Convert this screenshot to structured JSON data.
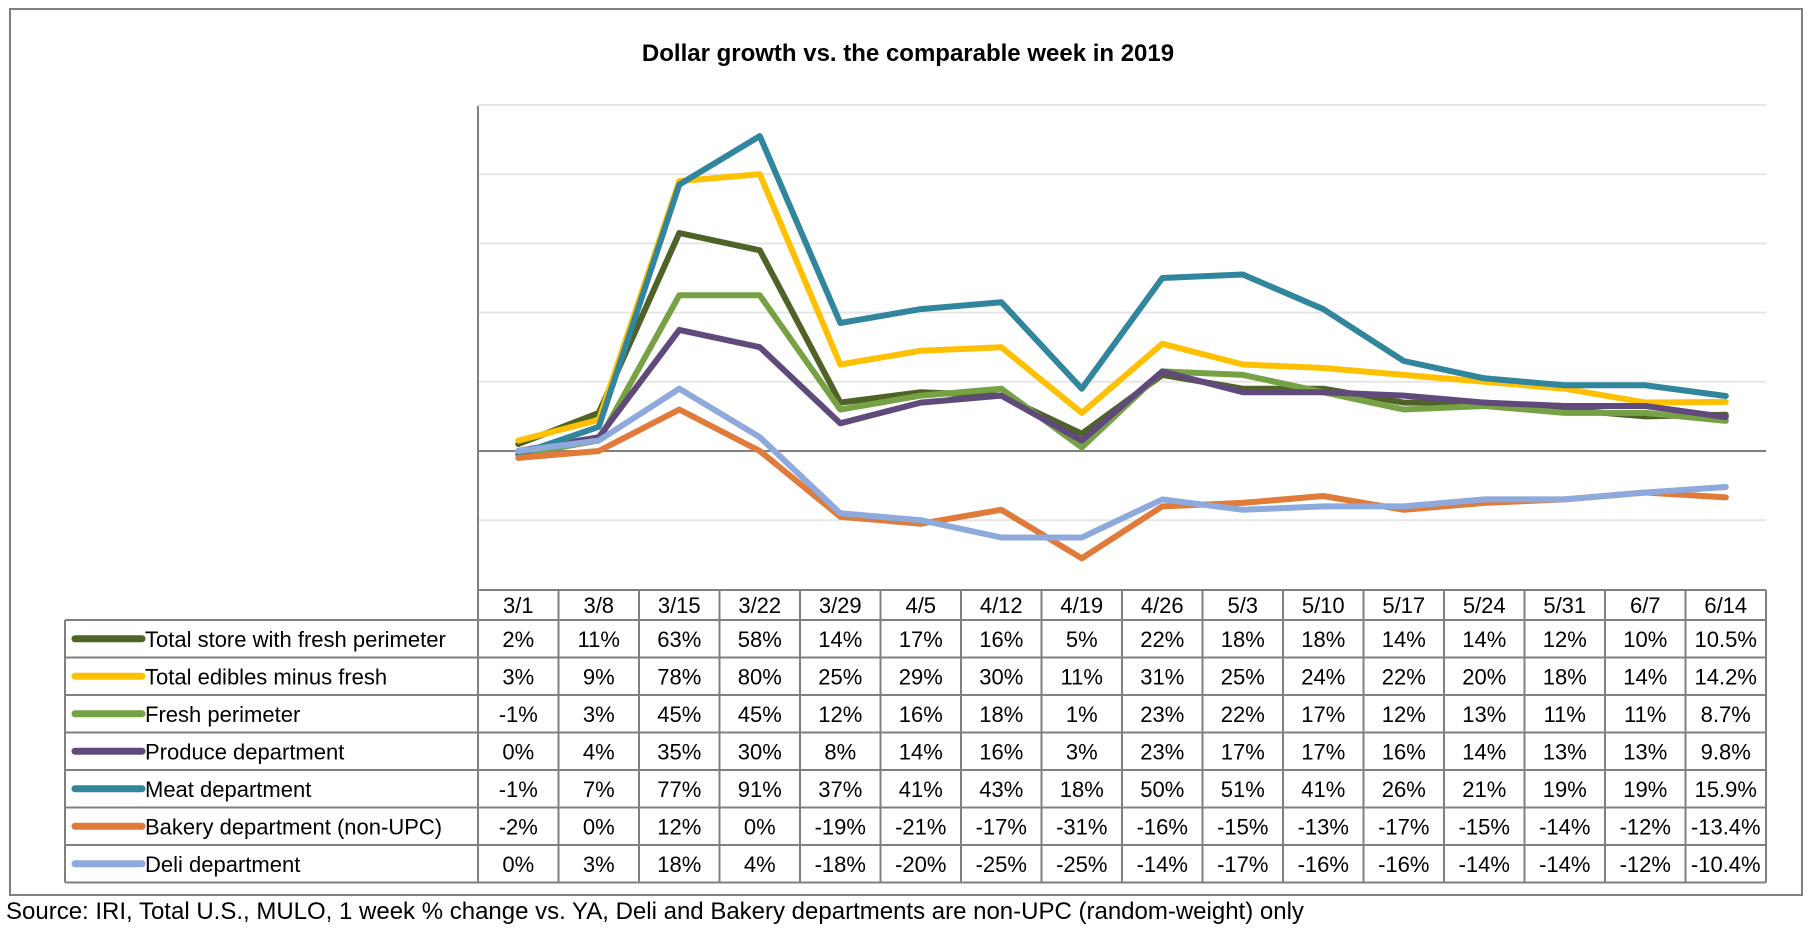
{
  "chart_data": {
    "type": "line",
    "title": "Dollar growth vs. the comparable week in 2019",
    "categories": [
      "3/1",
      "3/8",
      "3/15",
      "3/22",
      "3/29",
      "4/5",
      "4/12",
      "4/19",
      "4/26",
      "5/3",
      "5/10",
      "5/17",
      "5/24",
      "5/31",
      "6/7",
      "6/14"
    ],
    "ylim": [
      -40,
      100
    ],
    "grid": true,
    "legend": "data-table",
    "series": [
      {
        "name": "Total store with fresh perimeter",
        "color": "#4F6228",
        "values": [
          2,
          11,
          63,
          58,
          14,
          17,
          16,
          5,
          22,
          18,
          18,
          14,
          14,
          12,
          10,
          10.5
        ],
        "labels": [
          "2%",
          "11%",
          "63%",
          "58%",
          "14%",
          "17%",
          "16%",
          "5%",
          "22%",
          "18%",
          "18%",
          "14%",
          "14%",
          "12%",
          "10%",
          "10.5%"
        ]
      },
      {
        "name": "Total edibles minus fresh",
        "color": "#FFC000",
        "values": [
          3,
          9,
          78,
          80,
          25,
          29,
          30,
          11,
          31,
          25,
          24,
          22,
          20,
          18,
          14,
          14.2
        ],
        "labels": [
          "3%",
          "9%",
          "78%",
          "80%",
          "25%",
          "29%",
          "30%",
          "11%",
          "31%",
          "25%",
          "24%",
          "22%",
          "20%",
          "18%",
          "14%",
          "14.2%"
        ]
      },
      {
        "name": "Fresh perimeter",
        "color": "#77A145",
        "values": [
          -1,
          3,
          45,
          45,
          12,
          16,
          18,
          1,
          23,
          22,
          17,
          12,
          13,
          11,
          11,
          8.7
        ],
        "labels": [
          "-1%",
          "3%",
          "45%",
          "45%",
          "12%",
          "16%",
          "18%",
          "1%",
          "23%",
          "22%",
          "17%",
          "12%",
          "13%",
          "11%",
          "11%",
          "8.7%"
        ]
      },
      {
        "name": "Produce department",
        "color": "#604A7B",
        "values": [
          0,
          4,
          35,
          30,
          8,
          14,
          16,
          3,
          23,
          17,
          17,
          16,
          14,
          13,
          13,
          9.8
        ],
        "labels": [
          "0%",
          "4%",
          "35%",
          "30%",
          "8%",
          "14%",
          "16%",
          "3%",
          "23%",
          "17%",
          "17%",
          "16%",
          "14%",
          "13%",
          "13%",
          "9.8%"
        ]
      },
      {
        "name": "Meat department",
        "color": "#31859C",
        "values": [
          -1,
          7,
          77,
          91,
          37,
          41,
          43,
          18,
          50,
          51,
          41,
          26,
          21,
          19,
          19,
          15.9
        ],
        "labels": [
          "-1%",
          "7%",
          "77%",
          "91%",
          "37%",
          "41%",
          "43%",
          "18%",
          "50%",
          "51%",
          "41%",
          "26%",
          "21%",
          "19%",
          "19%",
          "15.9%"
        ]
      },
      {
        "name": "Bakery department (non-UPC)",
        "color": "#E07B39",
        "values": [
          -2,
          0,
          12,
          0,
          -19,
          -21,
          -17,
          -31,
          -16,
          -15,
          -13,
          -17,
          -15,
          -14,
          -12,
          -13.4
        ],
        "labels": [
          "-2%",
          "0%",
          "12%",
          "0%",
          "-19%",
          "-21%",
          "-17%",
          "-31%",
          "-16%",
          "-15%",
          "-13%",
          "-17%",
          "-15%",
          "-14%",
          "-12%",
          "-13.4%"
        ]
      },
      {
        "name": "Deli department",
        "color": "#8EA9DB",
        "values": [
          0,
          3,
          18,
          4,
          -18,
          -20,
          -25,
          -25,
          -14,
          -17,
          -16,
          -16,
          -14,
          -14,
          -12,
          -10.4
        ],
        "labels": [
          "0%",
          "3%",
          "18%",
          "4%",
          "-18%",
          "-20%",
          "-25%",
          "-25%",
          "-14%",
          "-17%",
          "-16%",
          "-16%",
          "-14%",
          "-14%",
          "-12%",
          "-10.4%"
        ]
      }
    ]
  },
  "source": "Source: IRI, Total U.S., MULO, 1 week % change vs. YA, Deli and Bakery departments are non-UPC (random-weight) only"
}
